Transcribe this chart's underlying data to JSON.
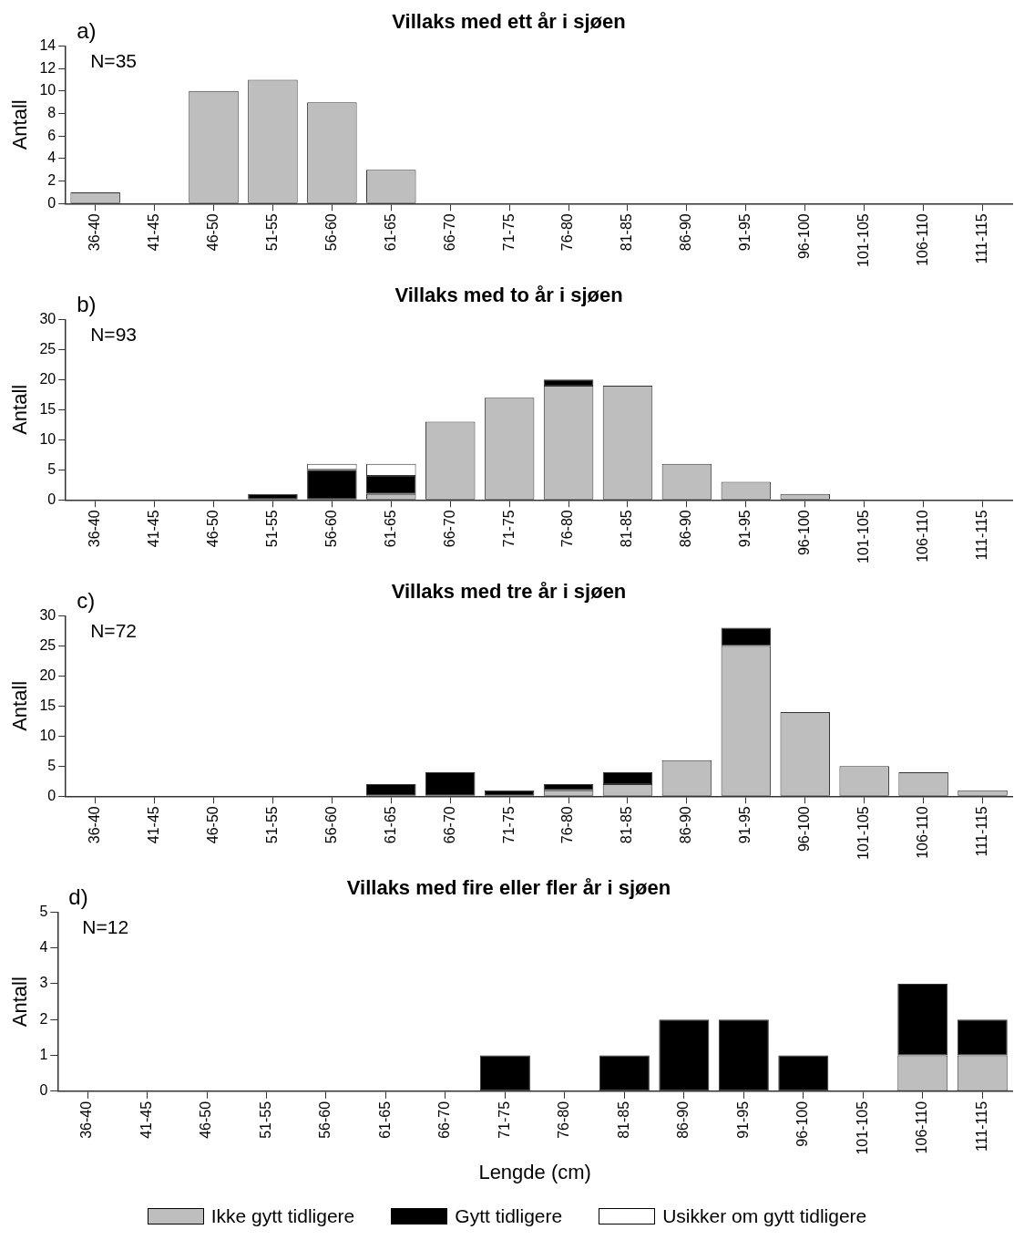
{
  "chart_data": [
    {
      "type": "bar",
      "title": "Villaks med ett år i sjøen",
      "ylabel": "Antall",
      "annotations": [
        "a)",
        "N=35"
      ],
      "categories": [
        "36-40",
        "41-45",
        "46-50",
        "51-55",
        "56-60",
        "61-65",
        "66-70",
        "71-75",
        "76-80",
        "81-85",
        "86-90",
        "91-95",
        "96-100",
        "101-105",
        "106-110",
        "111-115"
      ],
      "stacked": true,
      "ylim": [
        0,
        14
      ],
      "yticks": [
        0,
        2,
        4,
        6,
        8,
        10,
        12,
        14
      ],
      "series": [
        {
          "color": "#bebebe",
          "values": [
            1,
            0,
            10,
            11,
            9,
            3,
            0,
            0,
            0,
            0,
            0,
            0,
            0,
            0,
            0,
            0
          ]
        }
      ]
    },
    {
      "type": "bar",
      "title": "Villaks med to år i sjøen",
      "ylabel": "Antall",
      "annotations": [
        "b)",
        "N=93"
      ],
      "categories": [
        "36-40",
        "41-45",
        "46-50",
        "51-55",
        "56-60",
        "61-65",
        "66-70",
        "71-75",
        "76-80",
        "81-85",
        "86-90",
        "91-95",
        "96-100",
        "101-105",
        "106-110",
        "111-115"
      ],
      "stacked": true,
      "ylim": [
        0,
        30
      ],
      "yticks": [
        0,
        5,
        10,
        15,
        20,
        25,
        30
      ],
      "series": [
        {
          "color": "#bebebe",
          "values": [
            0,
            0,
            0,
            0,
            0,
            1,
            13,
            17,
            19,
            19,
            6,
            3,
            1,
            0,
            0,
            0
          ]
        },
        {
          "color": "#000000",
          "values": [
            0,
            0,
            0,
            1,
            5,
            3,
            0,
            0,
            1,
            0,
            0,
            0,
            0,
            0,
            0,
            0
          ]
        },
        {
          "color": "#ffffff",
          "values": [
            0,
            0,
            0,
            0,
            1,
            2,
            0,
            0,
            0,
            0,
            0,
            0,
            0,
            0,
            0,
            0
          ]
        }
      ]
    },
    {
      "type": "bar",
      "title": "Villaks med tre år i sjøen",
      "ylabel": "Antall",
      "annotations": [
        "c)",
        "N=72"
      ],
      "categories": [
        "36-40",
        "41-45",
        "46-50",
        "51-55",
        "56-60",
        "61-65",
        "66-70",
        "71-75",
        "76-80",
        "81-85",
        "86-90",
        "91-95",
        "96-100",
        "101-105",
        "106-110",
        "111-115"
      ],
      "stacked": true,
      "ylim": [
        0,
        30
      ],
      "yticks": [
        0,
        5,
        10,
        15,
        20,
        25,
        30
      ],
      "series": [
        {
          "color": "#bebebe",
          "values": [
            0,
            0,
            0,
            0,
            0,
            0,
            0,
            0,
            1,
            2,
            6,
            25,
            14,
            5,
            4,
            1
          ]
        },
        {
          "color": "#000000",
          "values": [
            0,
            0,
            0,
            0,
            0,
            2,
            4,
            1,
            1,
            2,
            0,
            3,
            0,
            0,
            0,
            0
          ]
        }
      ]
    },
    {
      "type": "bar",
      "title": "Villaks med fire eller fler år i sjøen",
      "ylabel": "Antall",
      "xlabel": "Lengde (cm)",
      "annotations": [
        "d)",
        "N=12"
      ],
      "categories": [
        "36-40",
        "41-45",
        "46-50",
        "51-55",
        "56-60",
        "61-65",
        "66-70",
        "71-75",
        "76-80",
        "81-85",
        "86-90",
        "91-95",
        "96-100",
        "101-105",
        "106-110",
        "111-115"
      ],
      "stacked": true,
      "ylim": [
        0,
        5
      ],
      "yticks": [
        0,
        1,
        2,
        3,
        4,
        5
      ],
      "legend": "bottom",
      "series": [
        {
          "name": "Ikke gytt tidligere",
          "color": "#bebebe",
          "values": [
            0,
            0,
            0,
            0,
            0,
            0,
            0,
            0,
            0,
            0,
            0,
            0,
            0,
            0,
            1,
            1
          ]
        },
        {
          "name": "Gytt tidligere",
          "color": "#000000",
          "values": [
            0,
            0,
            0,
            0,
            0,
            0,
            0,
            1,
            0,
            1,
            2,
            2,
            1,
            0,
            2,
            1
          ]
        },
        {
          "name": "Usikker om gytt tidligere",
          "color": "#ffffff",
          "values": [
            0,
            0,
            0,
            0,
            0,
            0,
            0,
            0,
            0,
            0,
            0,
            0,
            0,
            0,
            0,
            0
          ]
        }
      ]
    }
  ]
}
